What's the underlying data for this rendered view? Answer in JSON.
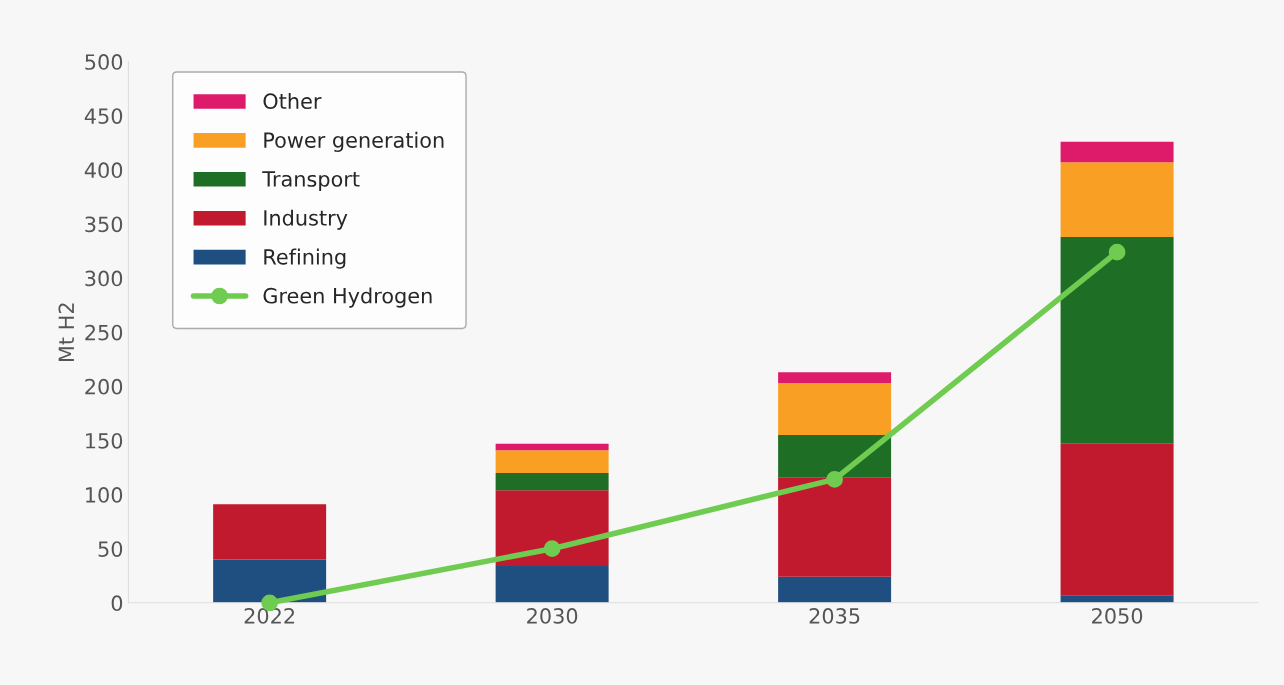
{
  "chart_data": {
    "type": "bar",
    "stacked": true,
    "ylabel": "Mt H2",
    "categories": [
      "2022",
      "2030",
      "2035",
      "2050"
    ],
    "ylim": [
      0,
      500
    ],
    "yticks": [
      0,
      50,
      100,
      150,
      200,
      250,
      300,
      350,
      400,
      450,
      500
    ],
    "grid": false,
    "legend": "top left",
    "series": [
      {
        "name": "Refining",
        "color": "#1f4e80",
        "values": [
          40,
          34,
          24,
          7
        ]
      },
      {
        "name": "Industry",
        "color": "#c1192d",
        "values": [
          51,
          70,
          92,
          140
        ]
      },
      {
        "name": "Transport",
        "color": "#1f6e26",
        "values": [
          0,
          16,
          39,
          191
        ]
      },
      {
        "name": "Power generation",
        "color": "#f9a024",
        "values": [
          0,
          21,
          48,
          69
        ]
      },
      {
        "name": "Other",
        "color": "#de1a6a",
        "values": [
          0,
          6,
          10,
          19
        ]
      },
      {
        "name": "Green Hydrogen",
        "type": "line",
        "color": "#6fcc50",
        "marker": "circle",
        "line_style": "solid",
        "values": [
          0,
          50,
          114,
          324
        ]
      }
    ]
  }
}
